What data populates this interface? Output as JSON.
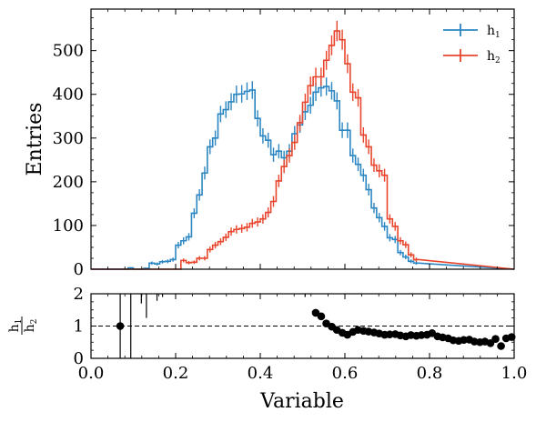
{
  "chart_data": [
    {
      "type": "line",
      "subtype": "step-histogram-with-errorbars",
      "title": "",
      "xlabel": "",
      "ylabel": "Entries",
      "xlim": [
        0.0,
        1.0
      ],
      "ylim": [
        0,
        595
      ],
      "yticks": [
        0,
        100,
        200,
        300,
        400,
        500
      ],
      "legend": {
        "placement": "top-right",
        "entries": [
          "h₁",
          "h₂"
        ]
      },
      "bin_edges_start": 0.0,
      "bin_width": 0.0125,
      "series": [
        {
          "name": "h₁",
          "color": "#2b86c2",
          "values": [
            0,
            0,
            0,
            0,
            0,
            0,
            0,
            3,
            0,
            0,
            2,
            14,
            12,
            17,
            18,
            22,
            55,
            65,
            74,
            128,
            170,
            220,
            280,
            300,
            355,
            365,
            383,
            400,
            401,
            407,
            410,
            345,
            305,
            295,
            262,
            270,
            255,
            270,
            310,
            330,
            360,
            375,
            405,
            415,
            418,
            408,
            385,
            318,
            318,
            260,
            240,
            215,
            182,
            140,
            118,
            98,
            72,
            68,
            38,
            28,
            18,
            14
          ],
          "errors_approx_sqrt": true
        },
        {
          "name": "h₂",
          "color": "#e8452c",
          "values": [
            0,
            0,
            0,
            0,
            0,
            0,
            0,
            0,
            0,
            0,
            0,
            0,
            0,
            0,
            0,
            0,
            0,
            20,
            15,
            16,
            25,
            25,
            45,
            55,
            63,
            73,
            86,
            91,
            93,
            96,
            105,
            108,
            115,
            130,
            155,
            202,
            235,
            260,
            290,
            335,
            382,
            420,
            440,
            440,
            478,
            512,
            545,
            525,
            470,
            405,
            392,
            307,
            280,
            238,
            225,
            215,
            115,
            98,
            65,
            56,
            33,
            22
          ],
          "errors_approx_sqrt": true
        }
      ]
    },
    {
      "type": "scatter",
      "title": "",
      "xlabel": "Variable",
      "ylabel": "h₁ / h₂",
      "xlim": [
        0.0,
        1.0
      ],
      "ylim": [
        0,
        2
      ],
      "yticks": [
        0,
        1,
        2
      ],
      "xticks": [
        "0.0",
        "0.2",
        "0.4",
        "0.6",
        "0.8",
        "1.0"
      ],
      "reference_line": 1,
      "x": [
        0.069,
        0.531,
        0.544,
        0.556,
        0.569,
        0.581,
        0.594,
        0.606,
        0.619,
        0.631,
        0.644,
        0.656,
        0.669,
        0.681,
        0.694,
        0.706,
        0.719,
        0.731,
        0.744,
        0.756,
        0.769,
        0.781,
        0.794,
        0.806,
        0.819,
        0.831,
        0.844,
        0.856,
        0.869,
        0.881,
        0.894,
        0.906,
        0.919,
        0.931,
        0.944,
        0.956,
        0.969,
        0.981,
        0.994
      ],
      "values": [
        1.0,
        1.41,
        1.3,
        1.08,
        0.98,
        0.88,
        0.79,
        0.73,
        0.82,
        0.88,
        0.85,
        0.83,
        0.8,
        0.77,
        0.73,
        0.74,
        0.75,
        0.71,
        0.68,
        0.72,
        0.7,
        0.72,
        0.73,
        0.78,
        0.68,
        0.65,
        0.62,
        0.56,
        0.54,
        0.57,
        0.58,
        0.52,
        0.5,
        0.52,
        0.47,
        0.6,
        0.38,
        0.62,
        0.66
      ],
      "error_bars": [
        {
          "x": 0.069,
          "low": 0.0,
          "high": 2.0
        },
        {
          "x": 0.094,
          "low": 0.0,
          "high": 2.0
        },
        {
          "x": 0.119,
          "low": 1.7,
          "high": 2.0
        },
        {
          "x": 0.131,
          "low": 1.25,
          "high": 2.0
        },
        {
          "x": 0.156,
          "low": 1.78,
          "high": 2.0
        },
        {
          "x": 0.169,
          "low": 1.9,
          "high": 2.0
        },
        {
          "x": 0.506,
          "low": 1.9,
          "high": 2.0
        }
      ]
    }
  ],
  "tick_labels": {
    "top_y": [
      "0",
      "100",
      "200",
      "300",
      "400",
      "500"
    ],
    "bottom_y": [
      "0",
      "1",
      "2"
    ],
    "bottom_x": [
      "0.0",
      "0.2",
      "0.4",
      "0.6",
      "0.8",
      "1.0"
    ]
  },
  "labels": {
    "top_ylabel": "Entries",
    "bottom_xlabel": "Variable",
    "ratio_num": "h",
    "ratio_num_sub": "1",
    "ratio_den": "h",
    "ratio_den_sub": "2",
    "legend1": "h",
    "legend1_sub": "1",
    "legend2": "h",
    "legend2_sub": "2"
  }
}
